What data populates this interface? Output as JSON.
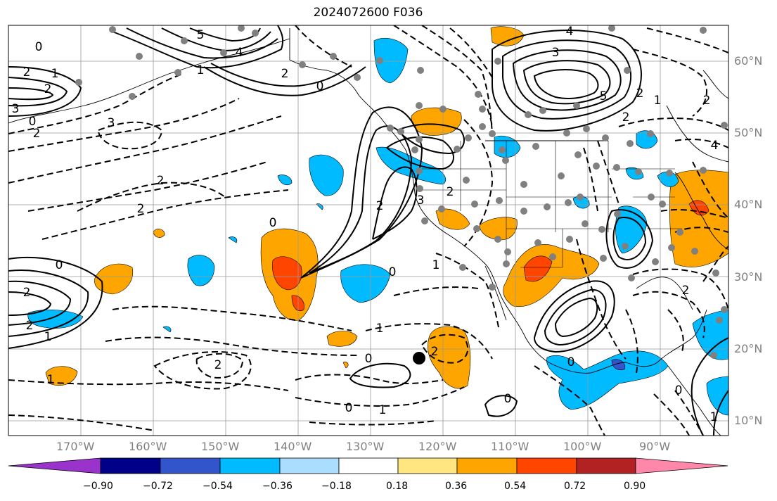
{
  "title": "2024072600 F036",
  "longitude_labels": [
    "170°W",
    "160°W",
    "150°W",
    "140°W",
    "130°W",
    "120°W",
    "110°W",
    "100°W",
    "90°W"
  ],
  "latitude_labels": [
    "60°N",
    "50°N",
    "40°N",
    "30°N",
    "20°N",
    "10°N"
  ],
  "colorbar": {
    "tick_labels": [
      "−0.90",
      "−0.72",
      "−0.54",
      "−0.36",
      "−0.18",
      "0.18",
      "0.36",
      "0.54",
      "0.72",
      "0.90"
    ],
    "colors": [
      "#9933cc",
      "#000088",
      "#3355cc",
      "#00bbff",
      "#aaddff",
      "#ffffff",
      "#ffe680",
      "#ffa500",
      "#ff4500",
      "#b22222",
      "#ff88aa"
    ]
  },
  "contour_labels": [
    "5",
    "4",
    "2",
    "1",
    "0",
    "1",
    "2",
    "3",
    "2",
    "2",
    "0",
    "2",
    "3",
    "5",
    "4",
    "2",
    "1",
    "3",
    "2",
    "4",
    "2",
    "0",
    "2",
    "0",
    "2",
    "3",
    "0",
    "1",
    "2",
    "2",
    "1",
    "0",
    "2",
    "0",
    "2",
    "2",
    "0",
    "0",
    "1",
    "0",
    "1",
    "2",
    "1",
    "0",
    "1"
  ]
}
